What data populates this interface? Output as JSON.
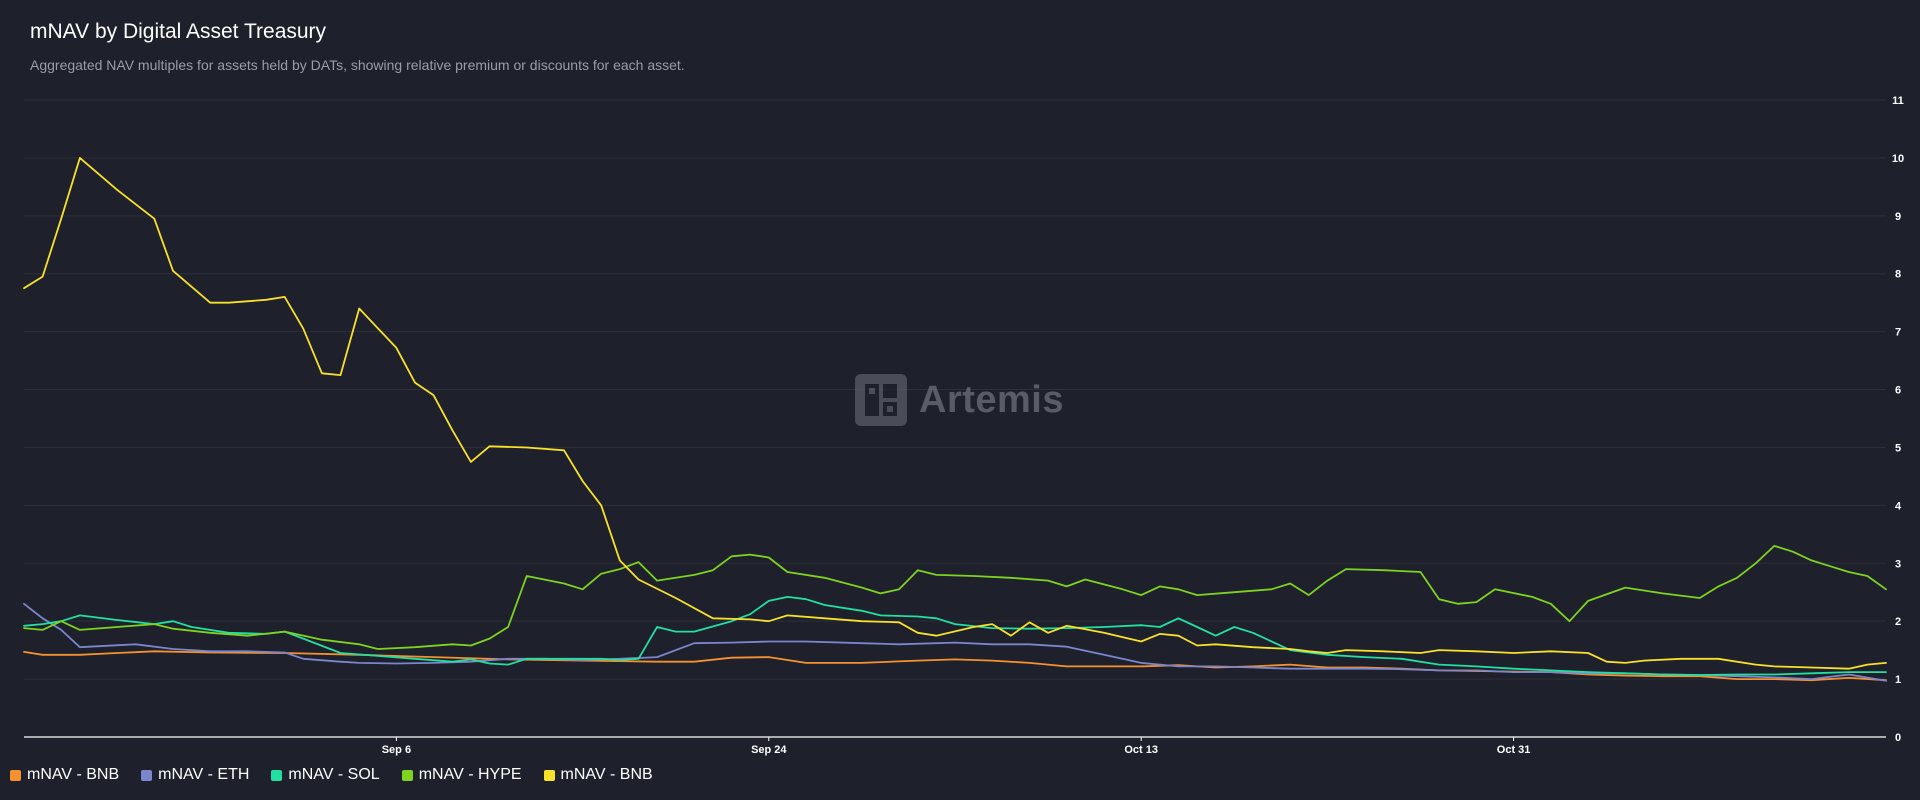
{
  "header": {
    "title": "mNAV by Digital Asset Treasury",
    "subtitle": "Aggregated NAV multiples for assets held by DATs, showing relative premium or discounts for each asset."
  },
  "watermark": {
    "text": "Artemis",
    "icon": "artemis-logo-icon"
  },
  "colors": {
    "background": "#1e202b",
    "grid": "#2c2f3b",
    "axis": "#ffffff",
    "tick_text": "#ffffff"
  },
  "chart_data": {
    "type": "line",
    "title": "mNAV by Digital Asset Treasury",
    "subtitle": "Aggregated NAV multiples for assets held by DATs, showing relative premium or discounts for each asset.",
    "x_range": [
      0,
      100
    ],
    "x_ticks": [
      {
        "x": 20,
        "label": "Sep 6"
      },
      {
        "x": 40,
        "label": "Sep 24"
      },
      {
        "x": 60,
        "label": "Oct 13"
      },
      {
        "x": 80,
        "label": "Oct 31"
      }
    ],
    "y_axis_side": "right",
    "ylim": [
      0,
      11
    ],
    "y_ticks": [
      0,
      1,
      2,
      3,
      4,
      5,
      6,
      7,
      8,
      9,
      10,
      11
    ],
    "grid": true,
    "legend_position": "bottom-left",
    "series": [
      {
        "name": "mNAV - BNB",
        "color": "#f5922f",
        "points": [
          [
            0,
            1.47
          ],
          [
            1,
            1.42
          ],
          [
            3,
            1.42
          ],
          [
            5,
            1.45
          ],
          [
            7,
            1.48
          ],
          [
            10,
            1.46
          ],
          [
            14,
            1.45
          ],
          [
            18,
            1.42
          ],
          [
            22,
            1.38
          ],
          [
            26,
            1.34
          ],
          [
            30,
            1.32
          ],
          [
            34,
            1.3
          ],
          [
            36,
            1.3
          ],
          [
            38,
            1.37
          ],
          [
            40,
            1.38
          ],
          [
            42,
            1.28
          ],
          [
            45,
            1.28
          ],
          [
            48,
            1.32
          ],
          [
            50,
            1.34
          ],
          [
            52,
            1.32
          ],
          [
            54,
            1.28
          ],
          [
            56,
            1.22
          ],
          [
            58,
            1.22
          ],
          [
            60,
            1.22
          ],
          [
            62,
            1.24
          ],
          [
            64,
            1.2
          ],
          [
            66,
            1.22
          ],
          [
            68,
            1.25
          ],
          [
            70,
            1.2
          ],
          [
            72,
            1.2
          ],
          [
            74,
            1.18
          ],
          [
            76,
            1.15
          ],
          [
            78,
            1.14
          ],
          [
            80,
            1.13
          ],
          [
            82,
            1.12
          ],
          [
            84,
            1.08
          ],
          [
            86,
            1.06
          ],
          [
            88,
            1.05
          ],
          [
            90,
            1.05
          ],
          [
            92,
            1.0
          ],
          [
            94,
            1.0
          ],
          [
            96,
            0.98
          ],
          [
            98,
            1.02
          ],
          [
            100,
            0.98
          ]
        ]
      },
      {
        "name": "mNAV - ETH",
        "color": "#7b86cc",
        "points": [
          [
            0,
            2.3
          ],
          [
            1,
            2.05
          ],
          [
            2,
            1.85
          ],
          [
            3,
            1.55
          ],
          [
            6,
            1.6
          ],
          [
            8,
            1.52
          ],
          [
            10,
            1.48
          ],
          [
            12,
            1.48
          ],
          [
            14,
            1.46
          ],
          [
            15,
            1.35
          ],
          [
            17,
            1.3
          ],
          [
            18,
            1.28
          ],
          [
            20,
            1.27
          ],
          [
            22,
            1.28
          ],
          [
            24,
            1.3
          ],
          [
            26,
            1.35
          ],
          [
            28,
            1.35
          ],
          [
            30,
            1.33
          ],
          [
            32,
            1.35
          ],
          [
            34,
            1.38
          ],
          [
            36,
            1.62
          ],
          [
            38,
            1.63
          ],
          [
            40,
            1.65
          ],
          [
            42,
            1.65
          ],
          [
            45,
            1.62
          ],
          [
            47,
            1.6
          ],
          [
            50,
            1.63
          ],
          [
            52,
            1.6
          ],
          [
            54,
            1.6
          ],
          [
            56,
            1.56
          ],
          [
            58,
            1.42
          ],
          [
            60,
            1.28
          ],
          [
            62,
            1.22
          ],
          [
            64,
            1.22
          ],
          [
            66,
            1.2
          ],
          [
            68,
            1.18
          ],
          [
            70,
            1.18
          ],
          [
            72,
            1.18
          ],
          [
            74,
            1.17
          ],
          [
            76,
            1.15
          ],
          [
            78,
            1.15
          ],
          [
            80,
            1.12
          ],
          [
            82,
            1.12
          ],
          [
            84,
            1.1
          ],
          [
            86,
            1.1
          ],
          [
            88,
            1.08
          ],
          [
            90,
            1.07
          ],
          [
            92,
            1.05
          ],
          [
            94,
            1.03
          ],
          [
            96,
            1.0
          ],
          [
            98,
            1.08
          ],
          [
            100,
            0.97
          ]
        ]
      },
      {
        "name": "mNAV - SOL",
        "color": "#22e0a0",
        "points": [
          [
            0,
            1.92
          ],
          [
            1,
            1.95
          ],
          [
            2,
            2.0
          ],
          [
            3,
            2.1
          ],
          [
            5,
            2.02
          ],
          [
            7,
            1.95
          ],
          [
            8,
            2.0
          ],
          [
            9,
            1.9
          ],
          [
            11,
            1.8
          ],
          [
            13,
            1.78
          ],
          [
            14,
            1.82
          ],
          [
            15,
            1.7
          ],
          [
            17,
            1.45
          ],
          [
            19,
            1.4
          ],
          [
            21,
            1.35
          ],
          [
            23,
            1.3
          ],
          [
            24,
            1.34
          ],
          [
            25,
            1.27
          ],
          [
            26,
            1.25
          ],
          [
            27,
            1.35
          ],
          [
            29,
            1.35
          ],
          [
            31,
            1.35
          ],
          [
            32,
            1.33
          ],
          [
            33,
            1.35
          ],
          [
            34,
            1.9
          ],
          [
            35,
            1.82
          ],
          [
            36,
            1.82
          ],
          [
            38,
            2.0
          ],
          [
            39,
            2.12
          ],
          [
            40,
            2.35
          ],
          [
            41,
            2.42
          ],
          [
            42,
            2.38
          ],
          [
            43,
            2.28
          ],
          [
            45,
            2.18
          ],
          [
            46,
            2.1
          ],
          [
            48,
            2.08
          ],
          [
            49,
            2.05
          ],
          [
            50,
            1.95
          ],
          [
            52,
            1.88
          ],
          [
            54,
            1.87
          ],
          [
            56,
            1.88
          ],
          [
            58,
            1.9
          ],
          [
            60,
            1.93
          ],
          [
            61,
            1.9
          ],
          [
            62,
            2.05
          ],
          [
            63,
            1.9
          ],
          [
            64,
            1.75
          ],
          [
            65,
            1.9
          ],
          [
            66,
            1.8
          ],
          [
            68,
            1.5
          ],
          [
            70,
            1.42
          ],
          [
            72,
            1.38
          ],
          [
            74,
            1.35
          ],
          [
            76,
            1.25
          ],
          [
            78,
            1.22
          ],
          [
            80,
            1.18
          ],
          [
            82,
            1.15
          ],
          [
            84,
            1.12
          ],
          [
            86,
            1.1
          ],
          [
            88,
            1.08
          ],
          [
            90,
            1.07
          ],
          [
            92,
            1.08
          ],
          [
            94,
            1.08
          ],
          [
            96,
            1.1
          ],
          [
            98,
            1.12
          ],
          [
            100,
            1.12
          ]
        ]
      },
      {
        "name": "mNAV - HYPE",
        "color": "#7ed321",
        "points": [
          [
            0,
            1.88
          ],
          [
            1,
            1.85
          ],
          [
            2,
            2.0
          ],
          [
            3,
            1.85
          ],
          [
            5,
            1.9
          ],
          [
            7,
            1.95
          ],
          [
            8,
            1.87
          ],
          [
            10,
            1.8
          ],
          [
            12,
            1.75
          ],
          [
            14,
            1.82
          ],
          [
            16,
            1.68
          ],
          [
            18,
            1.6
          ],
          [
            19,
            1.52
          ],
          [
            21,
            1.55
          ],
          [
            23,
            1.6
          ],
          [
            24,
            1.58
          ],
          [
            25,
            1.7
          ],
          [
            26,
            1.9
          ],
          [
            27,
            2.78
          ],
          [
            29,
            2.65
          ],
          [
            30,
            2.55
          ],
          [
            31,
            2.82
          ],
          [
            32,
            2.9
          ],
          [
            33,
            3.02
          ],
          [
            34,
            2.7
          ],
          [
            36,
            2.8
          ],
          [
            37,
            2.88
          ],
          [
            38,
            3.12
          ],
          [
            39,
            3.15
          ],
          [
            40,
            3.1
          ],
          [
            41,
            2.85
          ],
          [
            43,
            2.75
          ],
          [
            45,
            2.58
          ],
          [
            46,
            2.48
          ],
          [
            47,
            2.55
          ],
          [
            48,
            2.88
          ],
          [
            49,
            2.8
          ],
          [
            51,
            2.78
          ],
          [
            53,
            2.75
          ],
          [
            55,
            2.7
          ],
          [
            56,
            2.6
          ],
          [
            57,
            2.72
          ],
          [
            59,
            2.55
          ],
          [
            60,
            2.45
          ],
          [
            61,
            2.6
          ],
          [
            62,
            2.55
          ],
          [
            63,
            2.45
          ],
          [
            65,
            2.5
          ],
          [
            67,
            2.55
          ],
          [
            68,
            2.65
          ],
          [
            69,
            2.45
          ],
          [
            70,
            2.7
          ],
          [
            71,
            2.9
          ],
          [
            73,
            2.88
          ],
          [
            75,
            2.85
          ],
          [
            76,
            2.38
          ],
          [
            77,
            2.3
          ],
          [
            78,
            2.33
          ],
          [
            79,
            2.55
          ],
          [
            81,
            2.42
          ],
          [
            82,
            2.3
          ],
          [
            83,
            2.0
          ],
          [
            84,
            2.35
          ],
          [
            86,
            2.58
          ],
          [
            88,
            2.48
          ],
          [
            90,
            2.4
          ],
          [
            91,
            2.6
          ],
          [
            92,
            2.75
          ],
          [
            93,
            3.0
          ],
          [
            94,
            3.3
          ],
          [
            95,
            3.2
          ],
          [
            96,
            3.05
          ],
          [
            97,
            2.95
          ],
          [
            98,
            2.85
          ],
          [
            99,
            2.78
          ],
          [
            100,
            2.55
          ]
        ]
      },
      {
        "name": "mNAV - BNB",
        "color": "#f8e12a",
        "points": [
          [
            0,
            7.75
          ],
          [
            1,
            7.95
          ],
          [
            2,
            8.95
          ],
          [
            3,
            10.0
          ],
          [
            5,
            9.45
          ],
          [
            7,
            8.95
          ],
          [
            8,
            8.05
          ],
          [
            10,
            7.5
          ],
          [
            11,
            7.5
          ],
          [
            13,
            7.55
          ],
          [
            14,
            7.6
          ],
          [
            15,
            7.05
          ],
          [
            16,
            6.28
          ],
          [
            17,
            6.25
          ],
          [
            18,
            7.4
          ],
          [
            20,
            6.72
          ],
          [
            21,
            6.12
          ],
          [
            22,
            5.9
          ],
          [
            23,
            5.3
          ],
          [
            24,
            4.75
          ],
          [
            25,
            5.02
          ],
          [
            27,
            5.0
          ],
          [
            29,
            4.95
          ],
          [
            30,
            4.42
          ],
          [
            31,
            4.0
          ],
          [
            32,
            3.05
          ],
          [
            33,
            2.72
          ],
          [
            35,
            2.4
          ],
          [
            37,
            2.05
          ],
          [
            39,
            2.03
          ],
          [
            40,
            2.0
          ],
          [
            41,
            2.1
          ],
          [
            43,
            2.05
          ],
          [
            45,
            2.0
          ],
          [
            47,
            1.98
          ],
          [
            48,
            1.8
          ],
          [
            49,
            1.75
          ],
          [
            51,
            1.9
          ],
          [
            52,
            1.95
          ],
          [
            53,
            1.75
          ],
          [
            54,
            1.98
          ],
          [
            55,
            1.8
          ],
          [
            56,
            1.92
          ],
          [
            58,
            1.8
          ],
          [
            60,
            1.65
          ],
          [
            61,
            1.78
          ],
          [
            62,
            1.75
          ],
          [
            63,
            1.58
          ],
          [
            64,
            1.6
          ],
          [
            66,
            1.55
          ],
          [
            68,
            1.52
          ],
          [
            69,
            1.48
          ],
          [
            70,
            1.45
          ],
          [
            71,
            1.5
          ],
          [
            73,
            1.48
          ],
          [
            75,
            1.45
          ],
          [
            76,
            1.5
          ],
          [
            78,
            1.48
          ],
          [
            80,
            1.45
          ],
          [
            82,
            1.48
          ],
          [
            84,
            1.45
          ],
          [
            85,
            1.3
          ],
          [
            86,
            1.28
          ],
          [
            87,
            1.32
          ],
          [
            89,
            1.35
          ],
          [
            91,
            1.35
          ],
          [
            93,
            1.25
          ],
          [
            94,
            1.22
          ],
          [
            96,
            1.2
          ],
          [
            98,
            1.18
          ],
          [
            99,
            1.25
          ],
          [
            100,
            1.28
          ]
        ]
      }
    ]
  }
}
